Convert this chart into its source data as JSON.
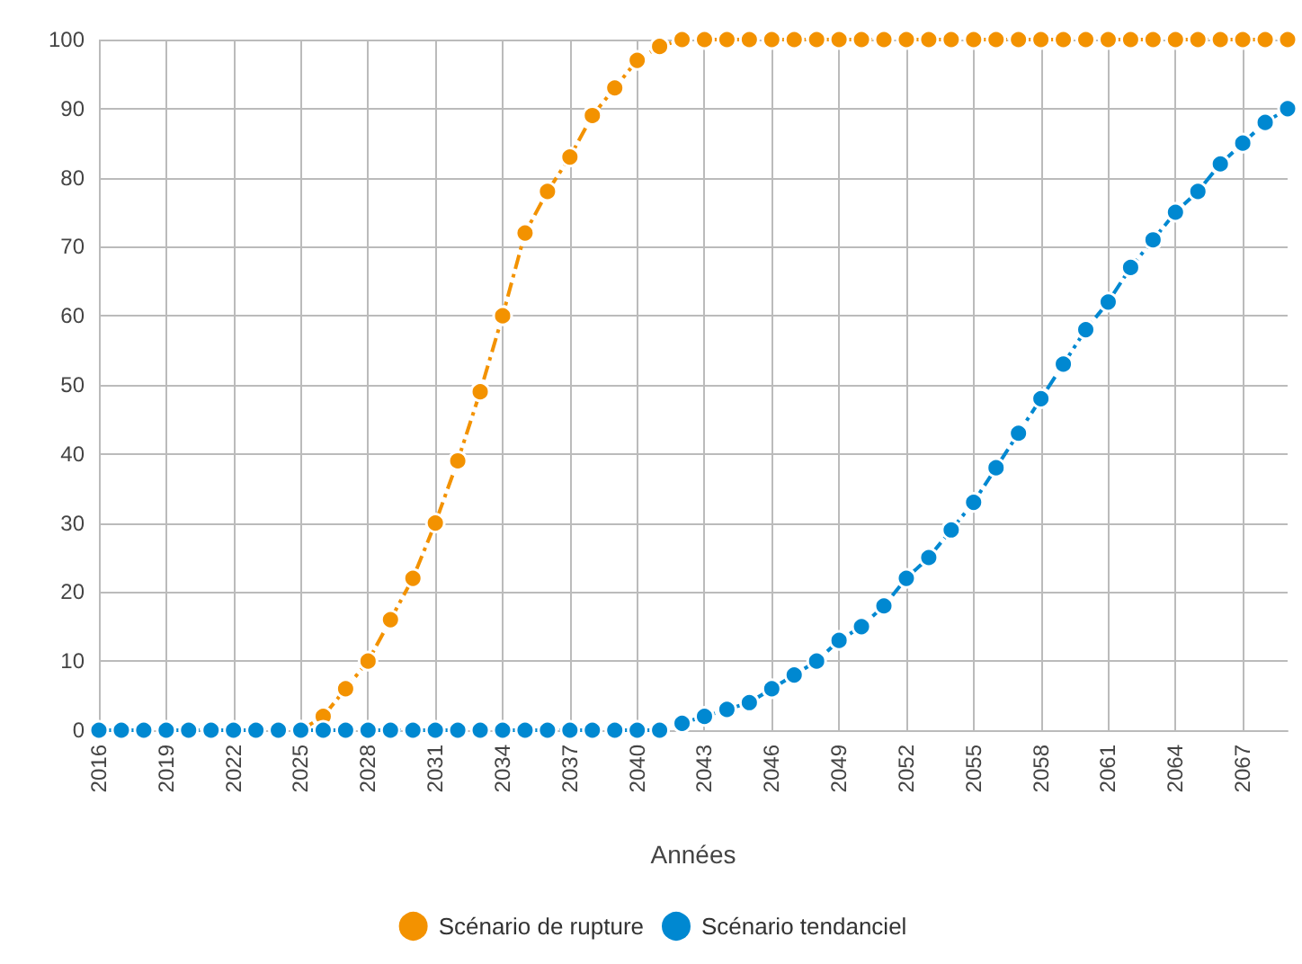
{
  "chart_data": {
    "type": "line",
    "xlabel": "Années",
    "categories": [
      "2016",
      null,
      null,
      "2019",
      null,
      null,
      "2022",
      null,
      null,
      "2025",
      null,
      null,
      "2028",
      null,
      null,
      "2031",
      null,
      null,
      "2034",
      null,
      null,
      "2037",
      null,
      null,
      "2040",
      null,
      null,
      "2043",
      null,
      null,
      "2046",
      null,
      null,
      "2049",
      null,
      null,
      "2052",
      null,
      null,
      "2055",
      null,
      null,
      "2058",
      null,
      null,
      "2061",
      null,
      null,
      "2064",
      null,
      null,
      "2067",
      null,
      null
    ],
    "series": [
      {
        "name": "Scénario de rupture",
        "color": "#f39200",
        "values": [
          null,
          null,
          null,
          null,
          null,
          null,
          null,
          null,
          null,
          0,
          2,
          6,
          10,
          16,
          22,
          30,
          39,
          49,
          60,
          72,
          78,
          83,
          89,
          93,
          97,
          99,
          100,
          100,
          100,
          100,
          100,
          100,
          100,
          100,
          100,
          100,
          100,
          100,
          100,
          100,
          100,
          100,
          100,
          100,
          100,
          100,
          100,
          100,
          100,
          100,
          100,
          100,
          100,
          100
        ]
      },
      {
        "name": "Scénario tendanciel",
        "color": "#0088d1",
        "values": [
          0,
          0,
          0,
          0,
          0,
          0,
          0,
          0,
          0,
          0,
          0,
          0,
          0,
          0,
          0,
          0,
          0,
          0,
          0,
          0,
          0,
          0,
          0,
          0,
          0,
          0,
          1,
          2,
          3,
          4,
          6,
          8,
          10,
          13,
          15,
          18,
          22,
          25,
          29,
          33,
          38,
          43,
          48,
          53,
          58,
          62,
          67,
          71,
          75,
          78,
          82,
          85,
          88,
          90
        ]
      }
    ],
    "ylim": [
      0,
      100
    ],
    "yticks": [
      0,
      10,
      20,
      30,
      40,
      50,
      60,
      70,
      80,
      90,
      100
    ],
    "grid": true,
    "legend": "bottom",
    "marker": "circle",
    "line_style": "dashed"
  }
}
